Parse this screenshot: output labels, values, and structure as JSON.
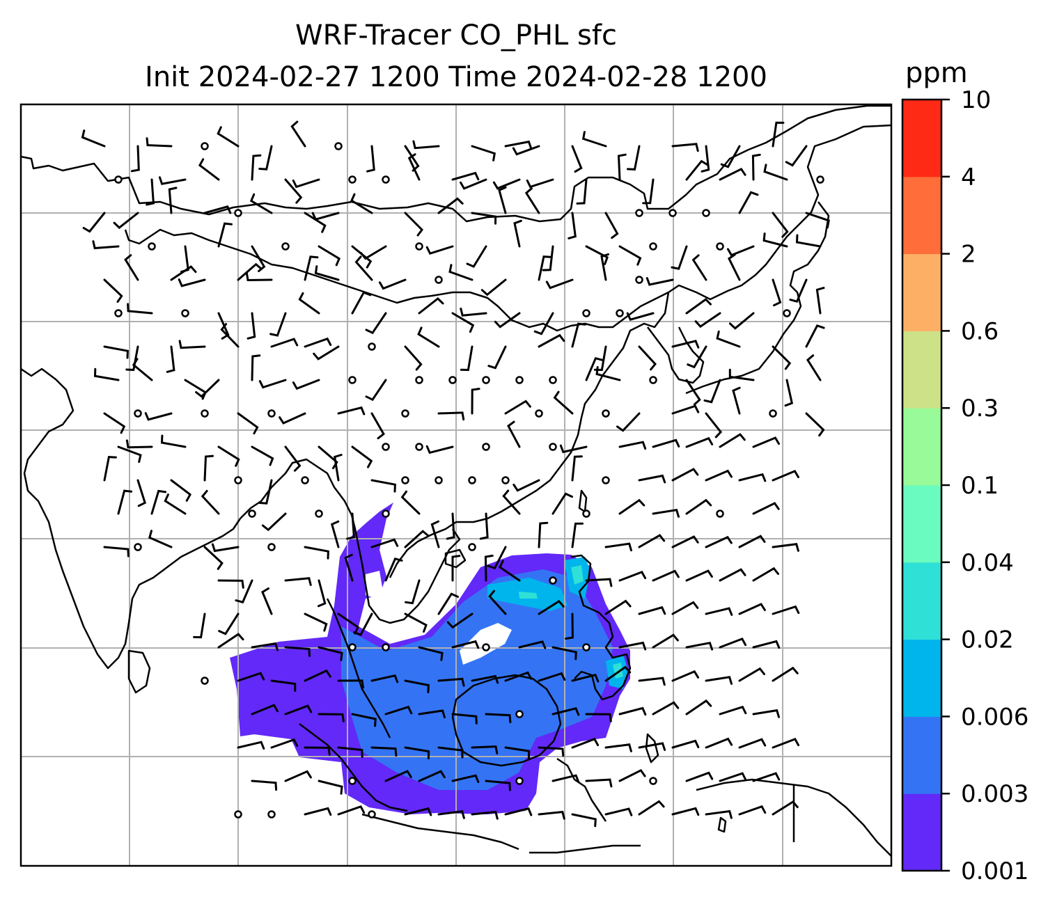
{
  "title": {
    "line1": "WRF-Tracer CO_PHL sfc",
    "line2": "Init 2024-02-27 1200 Time 2024-02-28 1200"
  },
  "colorbar": {
    "unit": "ppm",
    "levels": [
      "0.001",
      "0.003",
      "0.006",
      "0.02",
      "0.04",
      "0.1",
      "0.3",
      "0.6",
      "2",
      "4",
      "10"
    ],
    "colors": [
      "#6229f8",
      "#3474f4",
      "#00b4ec",
      "#2fe0d6",
      "#69fbbf",
      "#98fa98",
      "#cde188",
      "#fdb065",
      "#fe6d3a",
      "#ff2a15"
    ]
  },
  "map": {
    "field_colors": {
      "low": "#6229f8",
      "mid": "#3474f4",
      "high": "#00b4ec",
      "peak": "#2fe0d6"
    },
    "grid_color": "#b0b0b0",
    "coastline_color": "#000000"
  }
}
